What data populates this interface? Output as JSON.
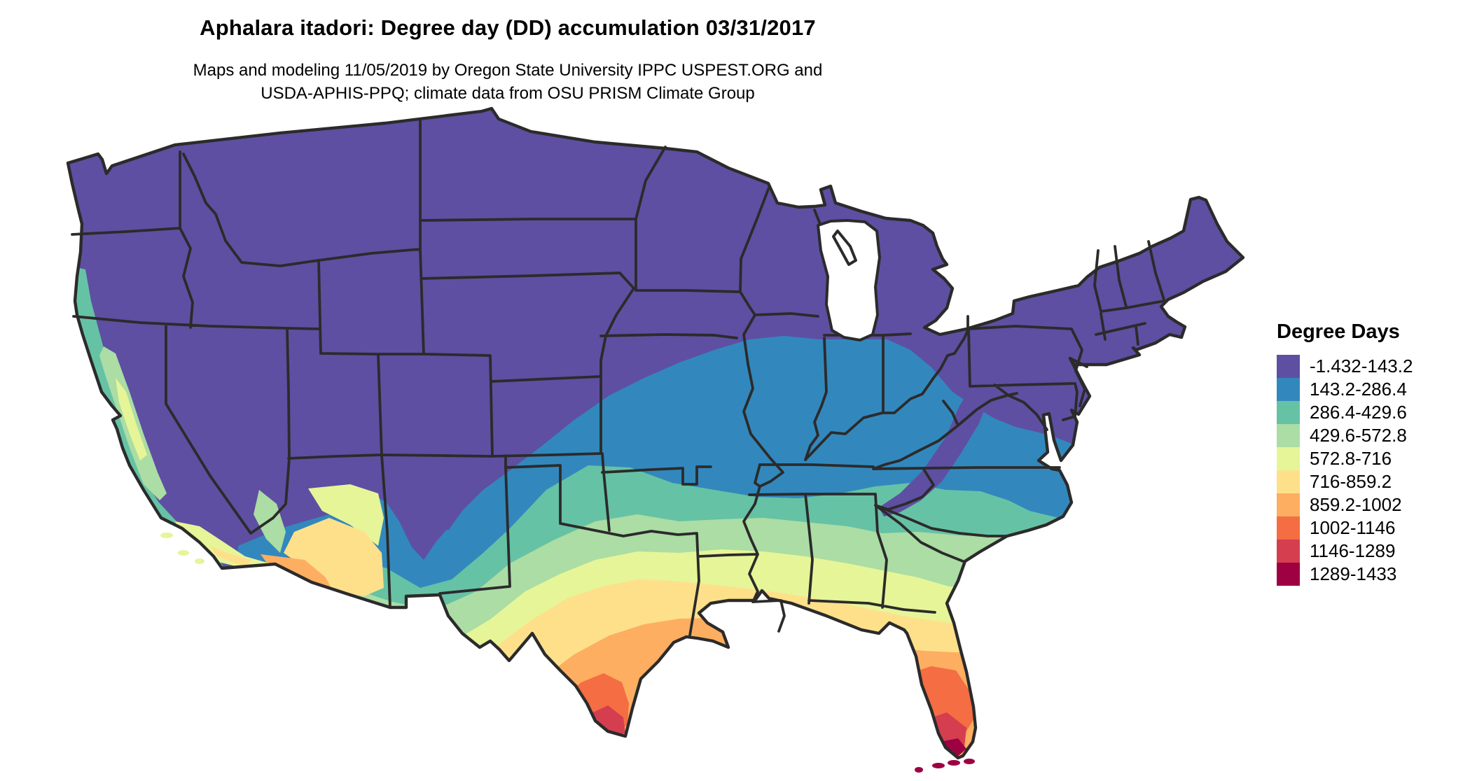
{
  "title": "Aphalara itadori: Degree day (DD) accumulation 03/31/2017",
  "subtitle_line1": "Maps and modeling 11/05/2019 by Oregon State University IPPC USPEST.ORG and",
  "subtitle_line2": "USDA-APHIS-PPQ; climate data from OSU PRISM Climate Group",
  "legend": {
    "title": "Degree Days",
    "items": [
      {
        "label": "-1.432-143.2",
        "color": "#5e4fa2"
      },
      {
        "label": "143.2-286.4",
        "color": "#3288bd"
      },
      {
        "label": "286.4-429.6",
        "color": "#66c2a5"
      },
      {
        "label": "429.6-572.8",
        "color": "#abdda4"
      },
      {
        "label": "572.8-716",
        "color": "#e6f598"
      },
      {
        "label": "716-859.2",
        "color": "#fee08b"
      },
      {
        "label": "859.2-1002",
        "color": "#fdae61"
      },
      {
        "label": "1002-1146",
        "color": "#f46d43"
      },
      {
        "label": "1146-1289",
        "color": "#d53e4f"
      },
      {
        "label": "1289-1433",
        "color": "#9e0142"
      }
    ]
  },
  "map": {
    "region": "Contiguous United States",
    "border_color": "#2b2b2b",
    "water_color": "#ffffff"
  },
  "chart_data": {
    "type": "heatmap",
    "title": "Aphalara itadori: Degree day (DD) accumulation 03/31/2017",
    "legend_title": "Degree Days",
    "legend_position": "right",
    "bins": [
      [
        -1.432,
        143.2
      ],
      [
        143.2,
        286.4
      ],
      [
        286.4,
        429.6
      ],
      [
        429.6,
        572.8
      ],
      [
        572.8,
        716
      ],
      [
        716,
        859.2
      ],
      [
        859.2,
        1002
      ],
      [
        1002,
        1146
      ],
      [
        1146,
        1289
      ],
      [
        1289,
        1433
      ]
    ],
    "colors": [
      "#5e4fa2",
      "#3288bd",
      "#66c2a5",
      "#abdda4",
      "#e6f598",
      "#fee08b",
      "#fdae61",
      "#f46d43",
      "#d53e4f",
      "#9e0142"
    ],
    "value_range": [
      -1.432,
      1433
    ],
    "pattern": "Degree-day accumulation increases from north (lowest bin, purple) to south (highest bin, dark red); highest values in southern Texas and southern Florida; mountain West and Northeast remain in the lowest bin"
  }
}
